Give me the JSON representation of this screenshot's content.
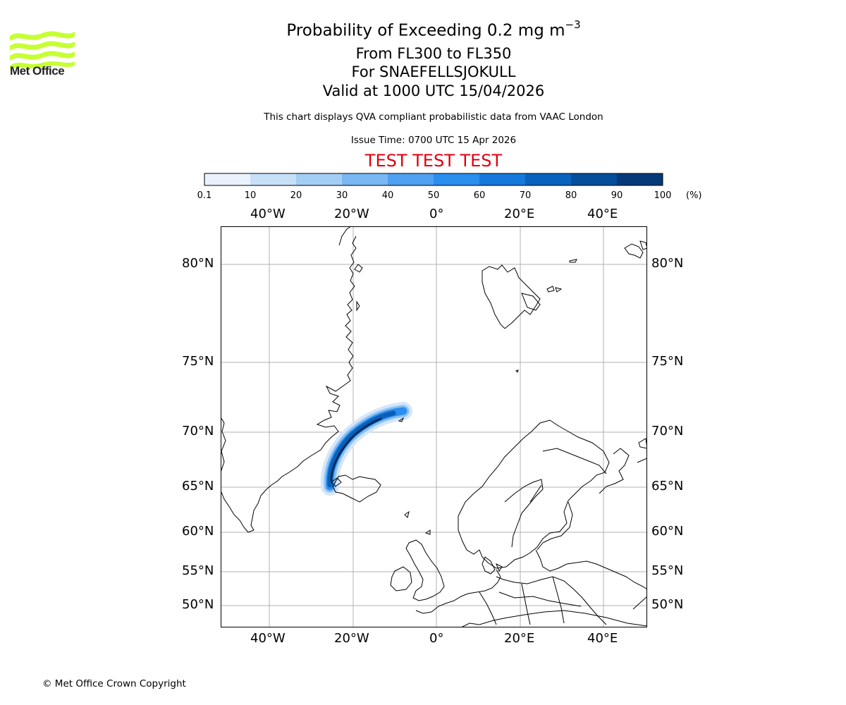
{
  "header": {
    "title_prefix": "Probability of Exceeding 0.2 mg m",
    "title_exponent": "−3",
    "levels": "From FL300 to FL350",
    "volcano": "For SNAEFELLSJOKULL",
    "valid": "Valid at 1000 UTC 15/04/2026",
    "description": "This chart displays QVA compliant probabilistic data from VAAC London",
    "issue_time": "Issue Time: 0700 UTC 15 Apr 2026",
    "test_banner": "TEST TEST TEST"
  },
  "logo": {
    "text": "Met Office",
    "icon": "met-office-waves-logo",
    "color": "#c6ff33"
  },
  "colorbar": {
    "ticks": [
      "0.1",
      "10",
      "20",
      "30",
      "40",
      "50",
      "60",
      "70",
      "80",
      "90",
      "100"
    ],
    "unit": "(%)",
    "colors": [
      "#eaf3fd",
      "#c7e0f8",
      "#a3cdf5",
      "#79b7f3",
      "#4ea1f0",
      "#2a8eef",
      "#1478dc",
      "#0962bd",
      "#064d9a",
      "#043a78",
      "#022a58"
    ]
  },
  "map": {
    "lon_labels": [
      "40°W",
      "20°W",
      "0°",
      "20°E",
      "40°E"
    ],
    "lat_labels": [
      "80°N",
      "75°N",
      "70°N",
      "65°N",
      "60°N",
      "55°N",
      "50°N"
    ],
    "plume_description": "ash probability band"
  },
  "footer": {
    "copyright": "© Met Office Crown Copyright"
  }
}
